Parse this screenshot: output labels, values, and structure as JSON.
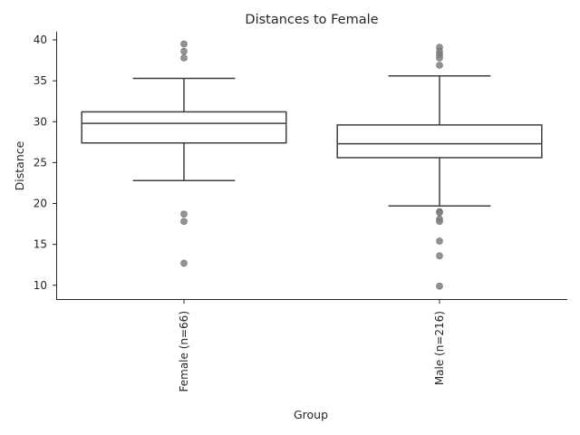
{
  "chart_data": {
    "type": "box",
    "title": "Distances to Female",
    "xlabel": "Group",
    "ylabel": "Distance",
    "ylim": [
      8.2,
      41.0
    ],
    "yticks": [
      10,
      15,
      20,
      25,
      30,
      35,
      40
    ],
    "grid": false,
    "legend": "none",
    "colors": {
      "box_edge": "#3f3f3f",
      "box_fill": "#ffffff",
      "outlier": "#808080",
      "axis": "#262626"
    },
    "groups": [
      {
        "label": "Female (n=66)",
        "whisker_low": 22.8,
        "q1": 27.4,
        "median": 29.8,
        "q3": 31.2,
        "whisker_high": 35.3,
        "outliers": [
          39.5,
          38.6,
          37.8,
          18.7,
          17.8,
          12.7
        ]
      },
      {
        "label": "Male (n=216)",
        "whisker_low": 19.7,
        "q1": 25.6,
        "median": 27.3,
        "q3": 29.6,
        "whisker_high": 35.6,
        "outliers": [
          39.1,
          38.6,
          38.2,
          37.8,
          36.9,
          19.0,
          18.9,
          18.1,
          17.8,
          15.4,
          13.6,
          9.9
        ]
      }
    ]
  }
}
